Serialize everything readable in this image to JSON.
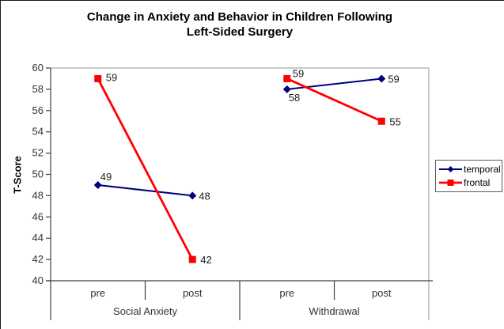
{
  "chart": {
    "title_lines": [
      "Change in Anxiety and Behavior in Children Following",
      "Left-Sided Surgery"
    ]
  },
  "chart_data": {
    "type": "line",
    "title": "Change in Anxiety and Behavior in Children Following Left-Sided Surgery",
    "ylabel": "T-Score",
    "ylim": [
      40,
      60
    ],
    "ytick_step": 2,
    "grid": false,
    "top_gridline_at": 60,
    "legend_position": "right",
    "category_groups": [
      {
        "label": "Social Anxiety",
        "categories": [
          "pre",
          "post"
        ]
      },
      {
        "label": "Withdrawal",
        "categories": [
          "pre",
          "post"
        ]
      }
    ],
    "categories": [
      "pre",
      "post",
      "pre",
      "post"
    ],
    "series": [
      {
        "name": "temporal",
        "color": "#000080",
        "marker": "diamond",
        "values": [
          49,
          48,
          58,
          59
        ]
      },
      {
        "name": "frontal",
        "color": "#ff0000",
        "marker": "square",
        "values": [
          59,
          42,
          59,
          55
        ]
      }
    ],
    "data_labels": true,
    "colors": {
      "gridline": "#aaaaaa",
      "axis": "#404040",
      "tick_text": "#333333",
      "label_text": "#1a1a1a"
    }
  }
}
